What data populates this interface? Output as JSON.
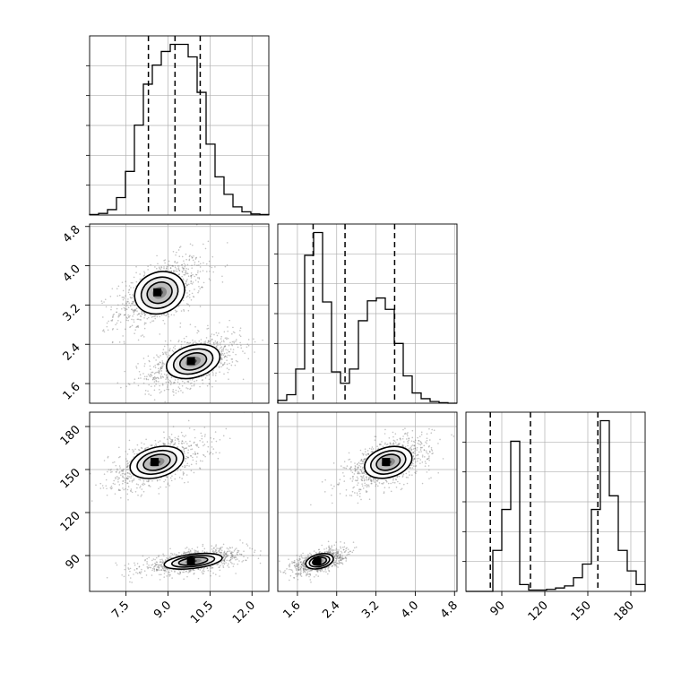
{
  "chart_data": {
    "type": "corner",
    "parameters": [
      {
        "index": 0,
        "range": [
          6.2,
          12.6
        ],
        "ticks": [
          7.5,
          9.0,
          10.5,
          12.0
        ],
        "tick_labels": [
          "7.5",
          "9.0",
          "10.5",
          "12.0"
        ],
        "quantiles": [
          8.3,
          9.25,
          10.15
        ]
      },
      {
        "index": 1,
        "range": [
          1.2,
          4.85
        ],
        "ticks": [
          1.6,
          2.4,
          3.2,
          4.0,
          4.8
        ],
        "tick_labels": [
          "1.6",
          "2.4",
          "3.2",
          "4.0",
          "4.8"
        ],
        "quantiles": [
          1.92,
          2.57,
          3.58
        ]
      },
      {
        "index": 2,
        "range": [
          65,
          190
        ],
        "ticks": [
          90,
          120,
          150,
          180
        ],
        "tick_labels": [
          "90",
          "120",
          "150",
          "180"
        ],
        "quantiles": [
          82,
          110,
          157
        ]
      }
    ],
    "histograms": [
      {
        "param": 0,
        "bin_edges": [
          6.2,
          6.52,
          6.84,
          7.16,
          7.48,
          7.8,
          8.12,
          8.44,
          8.76,
          9.08,
          9.4,
          9.72,
          10.04,
          10.36,
          10.68,
          11.0,
          11.32,
          11.64,
          11.96,
          12.28,
          12.6
        ],
        "counts": [
          1,
          3,
          10,
          32,
          80,
          165,
          240,
          275,
          300,
          313,
          313,
          290,
          225,
          130,
          70,
          38,
          15,
          6,
          2,
          1
        ]
      },
      {
        "param": 1,
        "bin_edges": [
          1.2,
          1.3825,
          1.565,
          1.7475,
          1.93,
          2.1125,
          2.295,
          2.4775,
          2.66,
          2.8425,
          3.025,
          3.2075,
          3.39,
          3.5725,
          3.755,
          3.9375,
          4.12,
          4.3025,
          4.485,
          4.6675,
          4.85
        ],
        "counts": [
          5,
          15,
          60,
          260,
          300,
          178,
          55,
          35,
          60,
          145,
          180,
          185,
          165,
          105,
          48,
          18,
          8,
          3,
          1,
          0
        ]
      },
      {
        "param": 2,
        "bin_edges": [
          65,
          71.25,
          77.5,
          83.75,
          90,
          96.25,
          102.5,
          108.75,
          115,
          121.25,
          127.5,
          133.75,
          140,
          146.25,
          152.5,
          158.75,
          165,
          171.25,
          177.5,
          183.75,
          190
        ],
        "counts": [
          0,
          0,
          0,
          60,
          120,
          220,
          10,
          2,
          2,
          3,
          5,
          8,
          20,
          40,
          120,
          250,
          140,
          60,
          30,
          10
        ]
      }
    ],
    "joint_panels": [
      {
        "x_param": 0,
        "y_param": 1,
        "modes": [
          {
            "cx": 8.7,
            "cy": 3.45,
            "sx": 0.7,
            "sy": 0.32,
            "weight": 0.5
          },
          {
            "cx": 9.9,
            "cy": 2.05,
            "sx": 0.75,
            "sy": 0.25,
            "weight": 0.5
          }
        ]
      },
      {
        "x_param": 0,
        "y_param": 2,
        "modes": [
          {
            "cx": 8.6,
            "cy": 155,
            "sx": 0.75,
            "sy": 8,
            "weight": 0.5
          },
          {
            "cx": 9.9,
            "cy": 86,
            "sx": 0.8,
            "sy": 3.8,
            "weight": 0.5
          }
        ]
      },
      {
        "x_param": 1,
        "y_param": 2,
        "modes": [
          {
            "cx": 3.45,
            "cy": 155,
            "sx": 0.38,
            "sy": 8,
            "weight": 0.5
          },
          {
            "cx": 2.05,
            "cy": 86,
            "sx": 0.22,
            "sy": 3.8,
            "weight": 0.5
          }
        ]
      }
    ],
    "grid": true,
    "quantile_line_style": "dashed"
  }
}
